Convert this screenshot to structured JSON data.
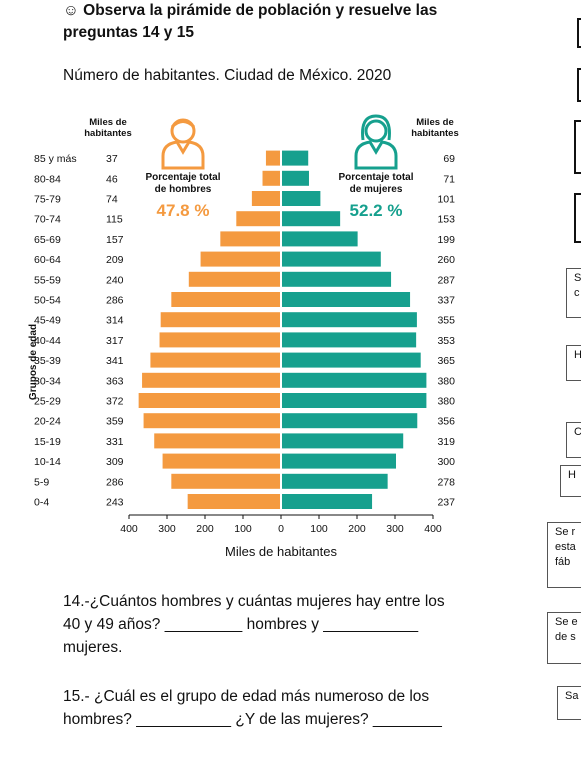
{
  "heading": {
    "emoji": "☺",
    "text": "Observa la pirámide de población y resuelve las preguntas 14 y 15"
  },
  "subtitle": "Número de habitantes. Ciudad de México. 2020",
  "chart_data": {
    "type": "bar",
    "orientation": "horizontal",
    "title": "",
    "y_axis_label": "Grupos de edad",
    "x_axis_label": "Miles de habitantes",
    "left_column_header": "Miles de habitantes",
    "right_column_header": "Miles de habitantes",
    "categories": [
      "85 y más",
      "80-84",
      "75-79",
      "70-74",
      "65-69",
      "60-64",
      "55-59",
      "50-54",
      "45-49",
      "40-44",
      "35-39",
      "30-34",
      "25-29",
      "20-24",
      "15-19",
      "10-14",
      "5-9",
      "0-4"
    ],
    "series": [
      {
        "name": "hombres",
        "color": "#F49A40",
        "values": [
          37,
          46,
          74,
          115,
          157,
          209,
          240,
          286,
          314,
          317,
          341,
          363,
          372,
          359,
          331,
          309,
          286,
          243
        ]
      },
      {
        "name": "mujeres",
        "color": "#16A08E",
        "values": [
          69,
          71,
          101,
          153,
          199,
          260,
          287,
          337,
          355,
          353,
          365,
          380,
          380,
          356,
          319,
          300,
          278,
          237
        ]
      }
    ],
    "x_ticks": [
      "400",
      "300",
      "200",
      "100",
      "0",
      "100",
      "200",
      "300",
      "400"
    ],
    "xlim": [
      -400,
      400
    ],
    "men_panel": {
      "label": "Porcentaje total de hombres",
      "value": "47.8 %",
      "icon": "man-icon"
    },
    "women_panel": {
      "label": "Porcentaje total de mujeres",
      "value": "52.2 %",
      "icon": "woman-icon"
    }
  },
  "questions": {
    "q14": {
      "line1": "14.-¿Cuántos hombres y cuántas mujeres hay entre los",
      "line2": "40 y 49 años? _________ hombres  y ___________",
      "line3": "mujeres."
    },
    "q15": {
      "line1": "15.- ¿Cuál es el grupo de edad más numeroso de los",
      "line2": "hombres? ___________ ¿Y de las mujeres? ________"
    }
  },
  "side_boxes": [
    {
      "text": ""
    },
    {
      "text": ""
    },
    {
      "text": ""
    },
    {
      "text": ""
    },
    {
      "text": "S\nc"
    },
    {
      "text": "H"
    },
    {
      "text": "C"
    },
    {
      "text": "H"
    },
    {
      "text": "Se r\nesta\nfáb"
    },
    {
      "text": "Se e\nde s"
    },
    {
      "text": "Sa"
    }
  ]
}
